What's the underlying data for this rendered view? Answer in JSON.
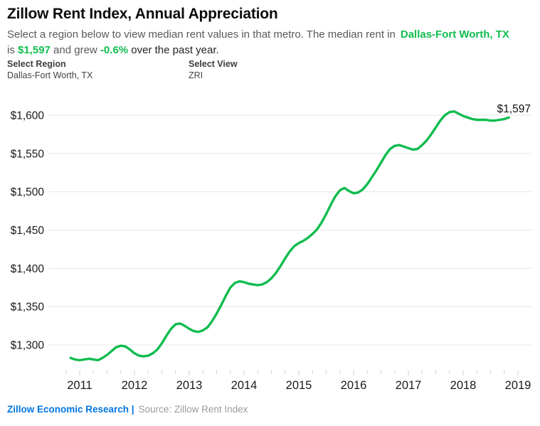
{
  "header": {
    "title": "Zillow Rent Index, Annual Appreciation",
    "subtitle_part1": "Select a region below to view median rent values in that metro. The median rent in",
    "region": "Dallas-Fort Worth, TX",
    "subtitle_part2": "is ",
    "rent": "$1,597",
    "subtitle_part3": " and grew ",
    "growth": "-0.6%",
    "subtitle_part4": " over the past year."
  },
  "controls": {
    "region_label": "Select Region",
    "region_value": "Dallas-Fort Worth, TX",
    "view_label": "Select View",
    "view_value": "ZRI"
  },
  "footer": {
    "credit": "Zillow Economic Research |",
    "source": "Source: Zillow Rent Index"
  },
  "chart_data": {
    "type": "line",
    "title": "Zillow Rent Index, Annual Appreciation",
    "region": "Dallas-Fort Worth, TX",
    "view": "ZRI",
    "grid": true,
    "legend": "none",
    "annotation": {
      "text": "$1,597",
      "value": 1597,
      "position": "end-of-line"
    },
    "colors": {
      "line": "#11bc4f",
      "accent_green": "#11bc4f",
      "footer_blue": "#0074e4",
      "gridline": "#e7e7e7",
      "tick": "#cfcfcf",
      "axis_text": "#1a1a1a"
    },
    "y_axis": {
      "ylim": [
        1270,
        1625
      ],
      "ticks": [
        {
          "label": "$1,300",
          "value": 1300
        },
        {
          "label": "$1,350",
          "value": 1350
        },
        {
          "label": "$1,400",
          "value": 1400
        },
        {
          "label": "$1,450",
          "value": 1450
        },
        {
          "label": "$1,500",
          "value": 1500
        },
        {
          "label": "$1,550",
          "value": 1550
        },
        {
          "label": "$1,600",
          "value": 1600
        }
      ]
    },
    "x_axis": {
      "ticks": [
        2011,
        2012,
        2013,
        2014,
        2015,
        2016,
        2017,
        2018,
        2019
      ],
      "minor_tick_step_years": 0.25,
      "minor_tick_start": 2010.75,
      "minor_tick_end": 2019.0
    },
    "series": [
      {
        "name": "Dallas-Fort Worth, TX ZRI",
        "color": "#11bc4f",
        "frequency": "monthly",
        "start_date": "2010-11",
        "end_date": "2018-11",
        "start_offset_months_from_jan_2011": -2,
        "values": [
          1283,
          1281,
          1280,
          1281,
          1282,
          1281,
          1280,
          1283,
          1287,
          1292,
          1297,
          1299,
          1298,
          1294,
          1289,
          1286,
          1285,
          1286,
          1289,
          1294,
          1302,
          1312,
          1321,
          1327,
          1328,
          1325,
          1321,
          1318,
          1317,
          1319,
          1323,
          1331,
          1341,
          1352,
          1364,
          1375,
          1381,
          1383,
          1382,
          1380,
          1379,
          1378,
          1379,
          1382,
          1387,
          1394,
          1403,
          1413,
          1422,
          1429,
          1433,
          1436,
          1440,
          1445,
          1451,
          1460,
          1471,
          1483,
          1494,
          1502,
          1505,
          1501,
          1498,
          1499,
          1503,
          1510,
          1519,
          1528,
          1538,
          1548,
          1556,
          1560,
          1561,
          1559,
          1557,
          1555,
          1556,
          1561,
          1567,
          1575,
          1584,
          1593,
          1600,
          1604,
          1605,
          1602,
          1599,
          1597,
          1595,
          1594,
          1594,
          1594,
          1593,
          1593,
          1594,
          1595,
          1597
        ]
      }
    ]
  }
}
